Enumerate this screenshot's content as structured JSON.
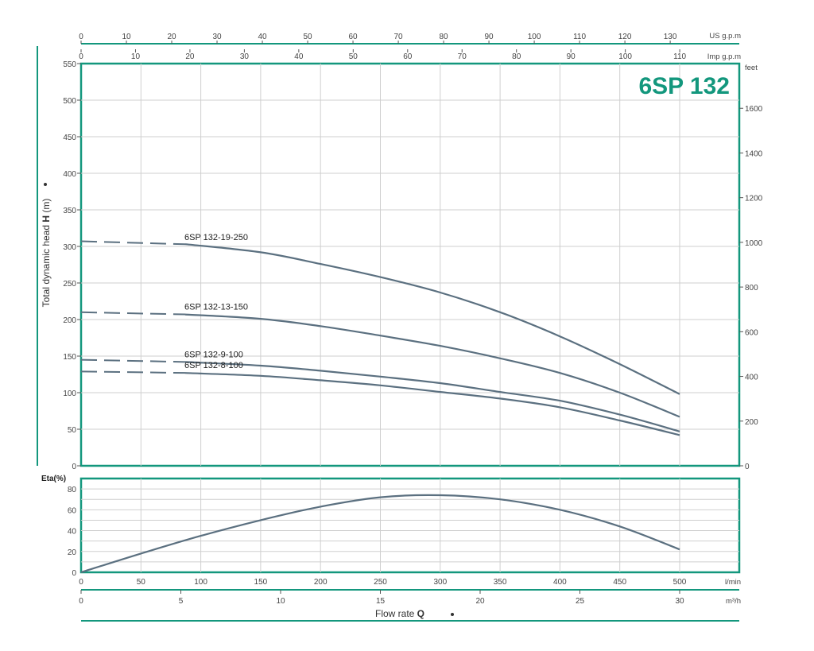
{
  "chart_data": [
    {
      "type": "line",
      "title": "6SP 132",
      "ylabel_parts": [
        "Total dynamic head ",
        "H",
        " (m)"
      ],
      "ylim": [
        0,
        550
      ],
      "ylim_feet": [
        0,
        1800
      ],
      "x_lmin_range": [
        0,
        550
      ],
      "yticks": [
        0,
        50,
        100,
        150,
        200,
        250,
        300,
        350,
        400,
        450,
        500,
        550
      ],
      "yticks_feet": [
        0,
        200,
        400,
        600,
        800,
        1000,
        1200,
        1400,
        1600
      ],
      "y_unit_feet": "feet",
      "top_axis_us": {
        "unit": "US g.p.m",
        "ticks": [
          0,
          10,
          20,
          30,
          40,
          50,
          60,
          70,
          80,
          90,
          100,
          110,
          120,
          130
        ]
      },
      "top_axis_imp": {
        "unit": "Imp g.p.m",
        "ticks": [
          0,
          10,
          20,
          30,
          40,
          50,
          60,
          70,
          80,
          90,
          100,
          110
        ]
      },
      "grid": true,
      "series": [
        {
          "name": "6SP 132-19-250",
          "x": [
            0,
            87,
            150,
            200,
            250,
            300,
            350,
            400,
            450,
            500
          ],
          "y": [
            307,
            303,
            292,
            276,
            258,
            237,
            210,
            177,
            139,
            98
          ]
        },
        {
          "name": "6SP 132-13-150",
          "x": [
            0,
            87,
            150,
            200,
            250,
            300,
            350,
            400,
            450,
            500
          ],
          "y": [
            210,
            207,
            201,
            191,
            178,
            164,
            147,
            127,
            100,
            67
          ]
        },
        {
          "name": "6SP 132-9-100",
          "x": [
            0,
            87,
            150,
            200,
            250,
            300,
            350,
            400,
            450,
            500
          ],
          "y": [
            145,
            142,
            137,
            130,
            122,
            113,
            101,
            89,
            70,
            47
          ]
        },
        {
          "name": "6SP 132-8-100",
          "x": [
            0,
            87,
            150,
            200,
            250,
            300,
            350,
            400,
            450,
            500
          ],
          "y": [
            129,
            127,
            123,
            117,
            110,
            101,
            92,
            80,
            62,
            42
          ]
        }
      ]
    },
    {
      "type": "line",
      "ylabel": "Eta(%)",
      "ylim": [
        0,
        90
      ],
      "yticks": [
        0,
        20,
        40,
        60,
        80
      ],
      "grid": true,
      "series": [
        {
          "x": [
            0,
            50,
            100,
            150,
            200,
            250,
            300,
            350,
            400,
            450,
            500
          ],
          "y": [
            0,
            18,
            35,
            50,
            63,
            72,
            74,
            70,
            60,
            44,
            22
          ]
        }
      ]
    }
  ],
  "x_axis": {
    "label_parts": [
      "Flow rate  ",
      "Q"
    ],
    "lmin_unit": "l/min",
    "lmin_ticks": [
      0,
      50,
      100,
      150,
      200,
      250,
      300,
      350,
      400,
      450,
      500
    ],
    "m3h_unit": "m³/h",
    "m3h_ticks": [
      "0",
      "5",
      "10",
      "15",
      "20",
      "25",
      "30"
    ],
    "m3h_values": [
      0,
      5,
      10,
      15,
      20,
      25,
      30
    ]
  },
  "colors": {
    "frame": "#13977d",
    "title": "#13977d",
    "curve": "#5b7080",
    "grid": "#cfcfcf"
  }
}
